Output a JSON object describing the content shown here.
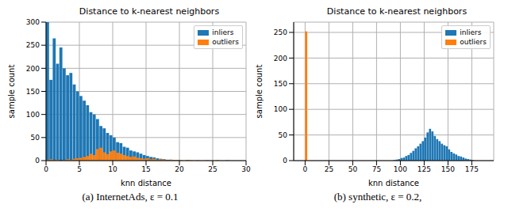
{
  "chart_data": [
    {
      "type": "histogram",
      "title": "Distance to k-nearest neighbors",
      "caption": "(a) InternetAds, ε = 0.1",
      "x_label": "knn distance",
      "y_label": "sample count",
      "xlim": [
        0,
        30
      ],
      "xticks": [
        0,
        5,
        10,
        15,
        20,
        25,
        30
      ],
      "ylim": [
        0,
        300
      ],
      "yticks": [
        0,
        50,
        100,
        150,
        200,
        250,
        300
      ],
      "grid": true,
      "legend": "upper right",
      "bins": [
        0,
        0.5,
        1,
        1.5,
        2,
        2.5,
        3,
        3.5,
        4,
        4.5,
        5,
        5.5,
        6,
        6.5,
        7,
        7.5,
        8,
        8.5,
        9,
        9.5,
        10,
        10.5,
        11,
        11.5,
        12,
        12.5,
        13,
        13.5,
        14,
        14.5,
        15,
        15.5,
        16,
        16.5,
        17,
        17.5,
        18,
        18.5,
        19,
        19.5,
        20,
        20.5,
        21,
        21.5,
        22,
        22.5,
        23,
        23.5,
        24,
        24.5,
        25,
        25.5,
        26,
        26.5,
        27,
        27.5,
        28,
        28.5,
        29,
        29.5,
        30
      ],
      "series": [
        {
          "name": "inliers",
          "color": "#1f77b4",
          "values": [
            300,
            175,
            265,
            210,
            245,
            200,
            185,
            190,
            165,
            150,
            140,
            130,
            120,
            105,
            100,
            90,
            75,
            70,
            60,
            55,
            50,
            40,
            38,
            30,
            28,
            22,
            20,
            18,
            15,
            12,
            10,
            8,
            7,
            5,
            4,
            3,
            2,
            2,
            1,
            1,
            0,
            0,
            1,
            0,
            0,
            0,
            0,
            0,
            0,
            0,
            0,
            0,
            0,
            0,
            0,
            0,
            0,
            0,
            0,
            0
          ]
        },
        {
          "name": "outliers",
          "color": "#ff7f0e",
          "values": [
            2,
            3,
            1,
            2,
            0,
            1,
            3,
            2,
            4,
            5,
            6,
            8,
            10,
            15,
            12,
            25,
            28,
            18,
            14,
            20,
            22,
            17,
            15,
            12,
            10,
            8,
            9,
            6,
            5,
            4,
            5,
            3,
            4,
            2,
            3,
            2,
            1,
            2,
            1,
            1,
            1,
            0,
            1,
            1,
            0,
            1,
            0,
            0,
            1,
            0,
            0,
            1,
            0,
            0,
            1,
            0,
            0,
            0,
            0,
            0
          ]
        }
      ]
    },
    {
      "type": "histogram",
      "title": "Distance to k-nearest neighbors",
      "caption": "(b) synthetic, ε = 0.2,",
      "x_label": "knn distance",
      "y_label": "sample count",
      "xlim": [
        -12,
        198
      ],
      "xticks": [
        0,
        25,
        50,
        75,
        100,
        125,
        150,
        175
      ],
      "ylim": [
        0,
        270
      ],
      "yticks": [
        0,
        50,
        100,
        150,
        200,
        250
      ],
      "grid": true,
      "legend": "upper right",
      "series": [
        {
          "name": "inliers",
          "color": "#1f77b4",
          "bins": [
            92.5,
            95,
            97.5,
            100,
            102.5,
            105,
            107.5,
            110,
            112.5,
            115,
            117.5,
            120,
            122.5,
            125,
            127.5,
            130,
            132.5,
            135,
            137.5,
            140,
            142.5,
            145,
            147.5,
            150,
            152.5,
            155,
            157.5,
            160,
            162.5,
            165,
            167.5,
            170,
            172.5,
            175,
            177.5
          ],
          "values": [
            1,
            2,
            3,
            5,
            6,
            9,
            11,
            15,
            19,
            24,
            28,
            33,
            38,
            45,
            55,
            62,
            57,
            48,
            42,
            38,
            33,
            30,
            28,
            22,
            17,
            14,
            12,
            9,
            8,
            6,
            4,
            3,
            2,
            1
          ]
        },
        {
          "name": "outliers",
          "color": "#ff7f0e",
          "bins": [
            0,
            2.5
          ],
          "values": [
            252
          ]
        }
      ]
    }
  ]
}
